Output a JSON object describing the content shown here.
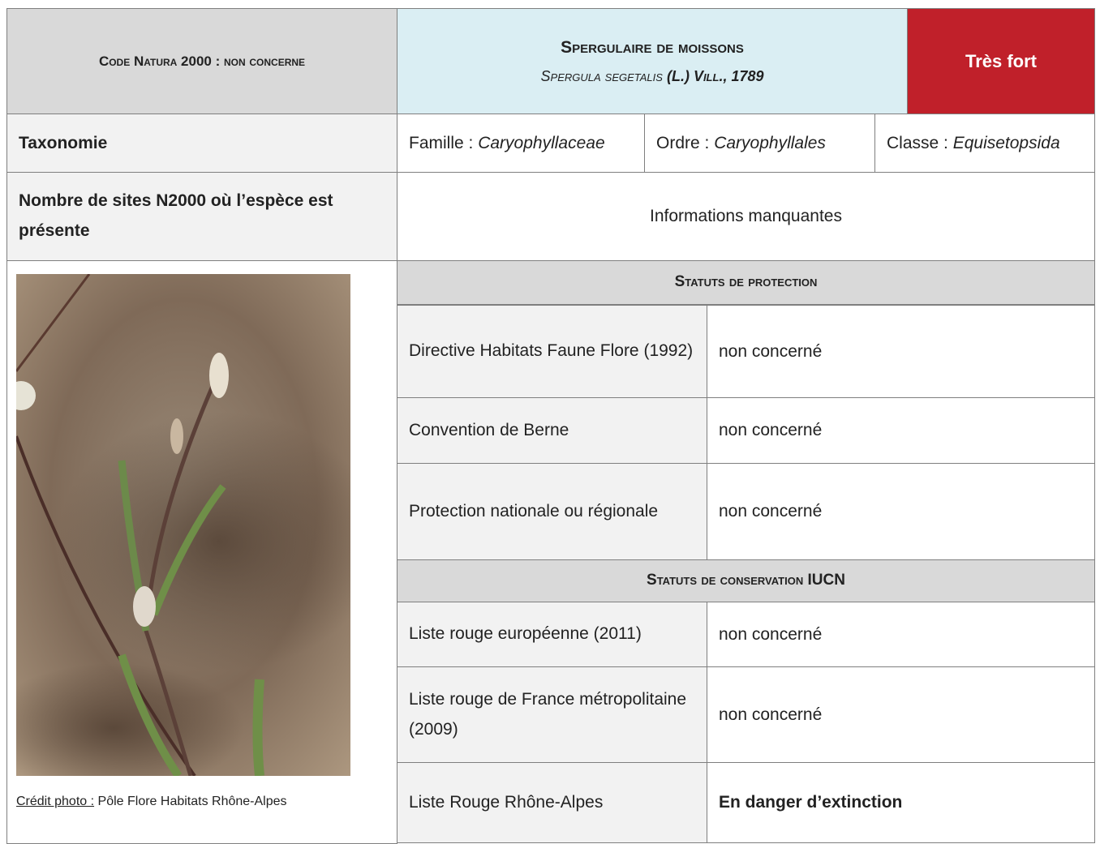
{
  "header": {
    "code": "Code Natura 2000 : non concerne",
    "common_name": "Spergulaire de moissons",
    "scientific_name": "Spergula segetalis",
    "authority": "(L.) Vill., 1789",
    "priority": "Très fort"
  },
  "taxonomy": {
    "label": "Taxonomie",
    "famille": {
      "label": "Famille :",
      "value": "Caryophyllaceae"
    },
    "ordre": {
      "label": "Ordre :",
      "value": "Caryophyllales"
    },
    "classe": {
      "label": "Classe :",
      "value": "Equisetopsida"
    }
  },
  "sites": {
    "label": "Nombre de sites N2000 où l’espèce est présente",
    "value": "Informations manquantes"
  },
  "photo": {
    "credit_label": "Crédit photo :",
    "credit": "Pôle Flore Habitats Rhône-Alpes"
  },
  "protection": {
    "title": "Statuts de protection",
    "rows": [
      [
        "Directive Habitats Faune Flore (1992)",
        "non concerné"
      ],
      [
        "Convention de Berne",
        "non concerné"
      ],
      [
        "Protection nationale ou régionale",
        "non concerné"
      ]
    ]
  },
  "conservation": {
    "title": "Statuts de conservation IUCN",
    "rows": [
      [
        "Liste rouge européenne (2011)",
        "non concerné"
      ],
      [
        "Liste rouge de France métropolitaine (2009)",
        "non concerné"
      ],
      [
        "Liste Rouge Rhône-Alpes",
        "En danger d’extinction"
      ]
    ]
  }
}
